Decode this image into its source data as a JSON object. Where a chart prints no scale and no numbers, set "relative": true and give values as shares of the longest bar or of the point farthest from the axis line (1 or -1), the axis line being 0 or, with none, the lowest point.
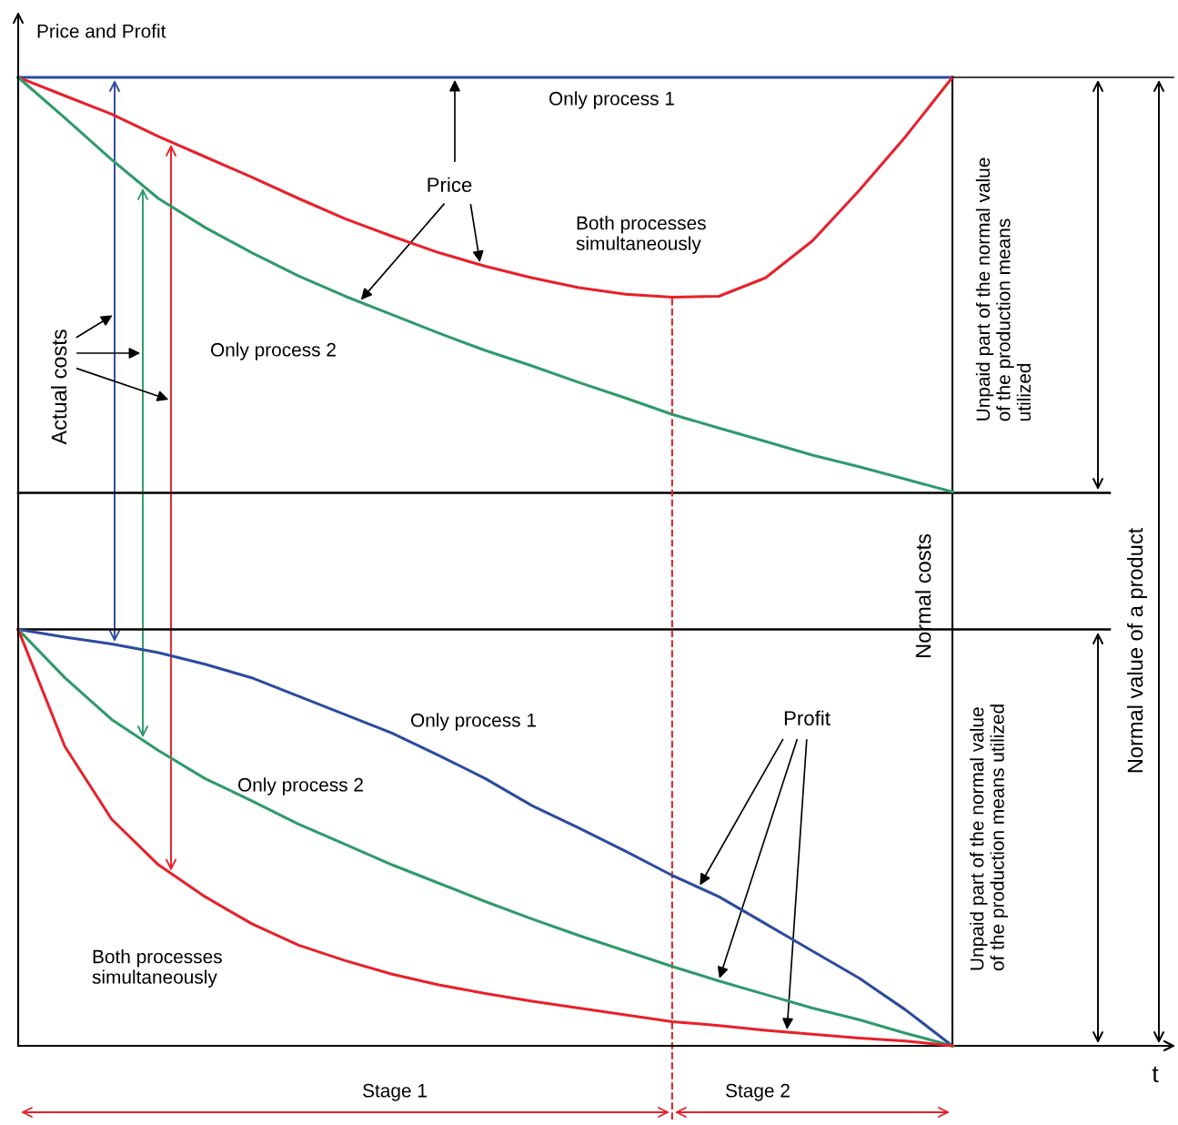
{
  "chart_data": {
    "type": "line",
    "relative": true,
    "ylabel": "Price and Profit",
    "categories": [
      null,
      null,
      null,
      null,
      null,
      null,
      null,
      null,
      null,
      null,
      null,
      null,
      null,
      null,
      null,
      null,
      null,
      null,
      null,
      null,
      null
    ],
    "series": [
      {
        "name": "Only process 1",
        "color": "#2b4ba0",
        "values": [
          1,
          1,
          1,
          1,
          1,
          1,
          1,
          1,
          1,
          1,
          1,
          1,
          1,
          1,
          1,
          1,
          1,
          1,
          1,
          1,
          1
        ]
      },
      {
        "name": "Both processes\nsimultaneously",
        "color": "#e8202a",
        "values": [
          1,
          0.981,
          0.962,
          0.939,
          0.918,
          0.897,
          0.875,
          0.854,
          0.836,
          0.819,
          0.805,
          0.793,
          0.783,
          0.776,
          0.773,
          0.774,
          0.793,
          0.831,
          0.883,
          0.939,
          1
        ]
      },
      {
        "name": "Only process 2",
        "color": "#2e9a6a",
        "values": [
          1,
          0.958,
          0.915,
          0.875,
          0.845,
          0.819,
          0.795,
          0.774,
          0.755,
          0.736,
          0.718,
          0.702,
          0.685,
          0.669,
          0.652,
          0.638,
          0.624,
          0.61,
          0.598,
          0.585,
          0.572
        ]
      },
      {
        "name": "Only process 1",
        "color": "#2b4ba0",
        "values": [
          0.43,
          0.422,
          0.415,
          0.406,
          0.394,
          0.38,
          0.361,
          0.342,
          0.323,
          0.3,
          0.276,
          0.248,
          0.225,
          0.201,
          0.176,
          0.154,
          0.126,
          0.098,
          0.07,
          0.037,
          0
        ]
      },
      {
        "name": "Only process 2",
        "color": "#2e9a6a",
        "values": [
          0.43,
          0.38,
          0.337,
          0.305,
          0.276,
          0.253,
          0.229,
          0.208,
          0.187,
          0.168,
          0.149,
          0.131,
          0.114,
          0.098,
          0.082,
          0.067,
          0.053,
          0.039,
          0.027,
          0.013,
          0
        ]
      },
      {
        "name": "Both processes\nsimultaneously",
        "color": "#e8202a",
        "values": [
          0.43,
          0.309,
          0.234,
          0.187,
          0.154,
          0.126,
          0.104,
          0.088,
          0.074,
          0.063,
          0.054,
          0.046,
          0.039,
          0.032,
          0.025,
          0.021,
          0.016,
          0.012,
          0.008,
          0.005,
          0
        ]
      }
    ],
    "ref_lines": [
      {
        "axis": "y",
        "value": 0.571,
        "color": "#000000",
        "line_style": "solid"
      },
      {
        "axis": "y",
        "value": 0.43,
        "color": "#000000",
        "line_style": "solid"
      }
    ],
    "annotations": [
      "Price",
      "Profit",
      "Actual costs",
      "Normal costs",
      "Unpaid part of the normal value\nof the production means\nutilized",
      "Unpaid part of the normal value\nof the production means utilized",
      "Normal value of a product",
      "Stage 1",
      "Stage 2",
      "t"
    ],
    "legend": false,
    "marker": "none",
    "line_style": "solid"
  }
}
